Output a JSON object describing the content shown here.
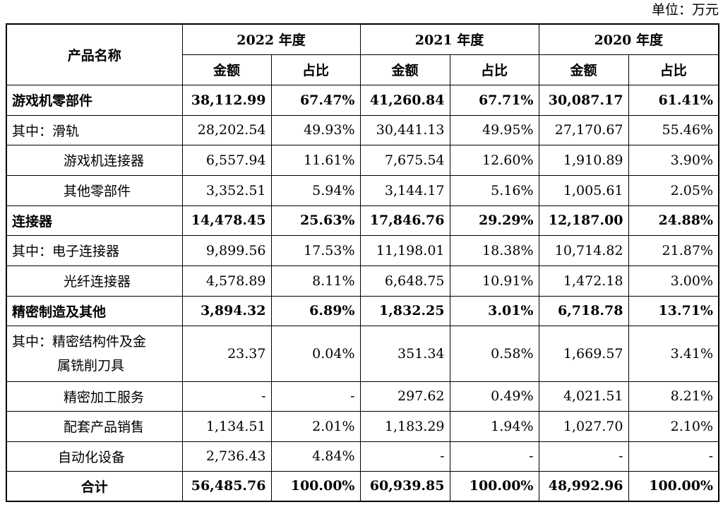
{
  "unit_label": "单位：万元",
  "header": {
    "product_name": "产品名称",
    "years": [
      "2022 年度",
      "2021 年度",
      "2020 年度"
    ],
    "amount": "金额",
    "ratio": "占比"
  },
  "rows": [
    {
      "name": "游戏机零部件",
      "v": [
        "38,112.99",
        "67.47%",
        "41,260.84",
        "67.71%",
        "30,087.17",
        "61.41%"
      ]
    },
    {
      "name": "其中：滑轨",
      "v": [
        "28,202.54",
        "49.93%",
        "30,441.13",
        "49.95%",
        "27,170.67",
        "55.46%"
      ]
    },
    {
      "name": "游戏机连接器",
      "v": [
        "6,557.94",
        "11.61%",
        "7,675.54",
        "12.60%",
        "1,910.89",
        "3.90%"
      ]
    },
    {
      "name": "其他零部件",
      "v": [
        "3,352.51",
        "5.94%",
        "3,144.17",
        "5.16%",
        "1,005.61",
        "2.05%"
      ]
    },
    {
      "name": "连接器",
      "v": [
        "14,478.45",
        "25.63%",
        "17,846.76",
        "29.29%",
        "12,187.00",
        "24.88%"
      ]
    },
    {
      "name": "其中：电子连接器",
      "v": [
        "9,899.56",
        "17.53%",
        "11,198.01",
        "18.38%",
        "10,714.82",
        "21.87%"
      ]
    },
    {
      "name": "光纤连接器",
      "v": [
        "4,578.89",
        "8.11%",
        "6,648.75",
        "10.91%",
        "1,472.18",
        "3.00%"
      ]
    },
    {
      "name": "精密制造及其他",
      "v": [
        "3,894.32",
        "6.89%",
        "1,832.25",
        "3.01%",
        "6,718.78",
        "13.71%"
      ]
    },
    {
      "name_line1": "其中：精密结构件及金",
      "name_line2": "属铣削刀具",
      "v": [
        "23.37",
        "0.04%",
        "351.34",
        "0.58%",
        "1,669.57",
        "3.41%"
      ]
    },
    {
      "name": "精密加工服务",
      "v": [
        "-",
        "-",
        "297.62",
        "0.49%",
        "4,021.51",
        "8.21%"
      ]
    },
    {
      "name": "配套产品销售",
      "v": [
        "1,134.51",
        "2.01%",
        "1,183.29",
        "1.94%",
        "1,027.70",
        "2.10%"
      ]
    },
    {
      "name": "自动化设备",
      "v": [
        "2,736.43",
        "4.84%",
        "-",
        "-",
        "-",
        "-"
      ]
    },
    {
      "name": "合计",
      "v": [
        "56,485.76",
        "100.00%",
        "60,939.85",
        "100.00%",
        "48,992.96",
        "100.00%"
      ]
    }
  ]
}
